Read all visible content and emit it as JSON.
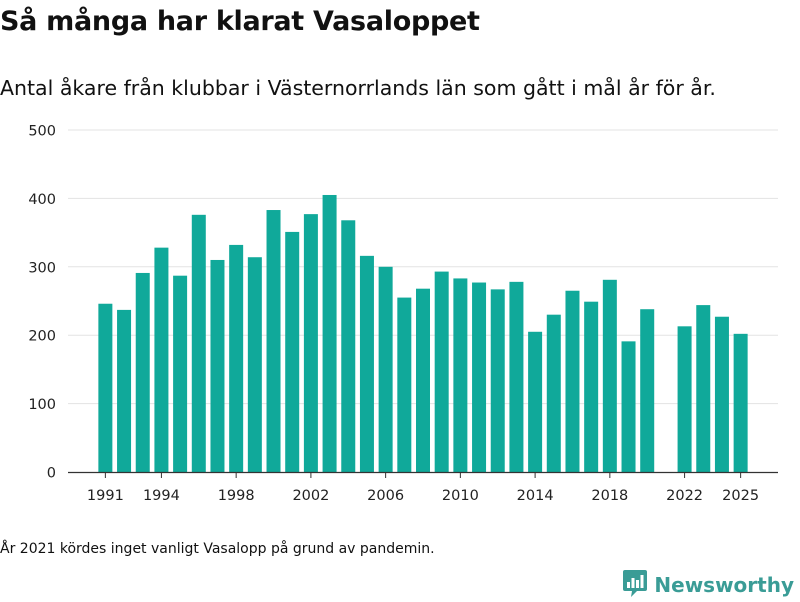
{
  "header": {
    "title": "Så många har klarat Vasaloppet",
    "subtitle": "Antal åkare från klubbar i Västernorrlands län som gått i mål år för år."
  },
  "footnote": "År 2021 kördes inget vanligt Vasalopp på grund av pandemin.",
  "brand": {
    "name": "Newsworthy",
    "icon": "bar-chart-speech-bubble-icon"
  },
  "colors": {
    "bar": "#10a99a",
    "grid": "#e3e3e3",
    "axis": "#333333",
    "brand": "#3a9c96"
  },
  "chart_data": {
    "type": "bar",
    "x": [
      1991,
      1992,
      1993,
      1994,
      1995,
      1996,
      1997,
      1998,
      1999,
      2000,
      2001,
      2002,
      2003,
      2004,
      2005,
      2006,
      2007,
      2008,
      2009,
      2010,
      2011,
      2012,
      2013,
      2014,
      2015,
      2016,
      2017,
      2018,
      2019,
      2020,
      2022,
      2023,
      2024,
      2025
    ],
    "values": [
      246,
      237,
      291,
      328,
      287,
      376,
      310,
      332,
      314,
      383,
      351,
      377,
      405,
      368,
      316,
      300,
      255,
      268,
      293,
      283,
      277,
      267,
      278,
      205,
      230,
      265,
      249,
      281,
      191,
      238,
      213,
      244,
      227,
      202
    ],
    "xticks": [
      "1991",
      "1994",
      "1998",
      "2002",
      "2006",
      "2010",
      "2014",
      "2018",
      "2022",
      "2025"
    ],
    "yticks": [
      "0",
      "100",
      "200",
      "300",
      "400",
      "500"
    ],
    "ylim": [
      0,
      500
    ],
    "xlim": [
      1989,
      2027
    ],
    "grid": true
  }
}
